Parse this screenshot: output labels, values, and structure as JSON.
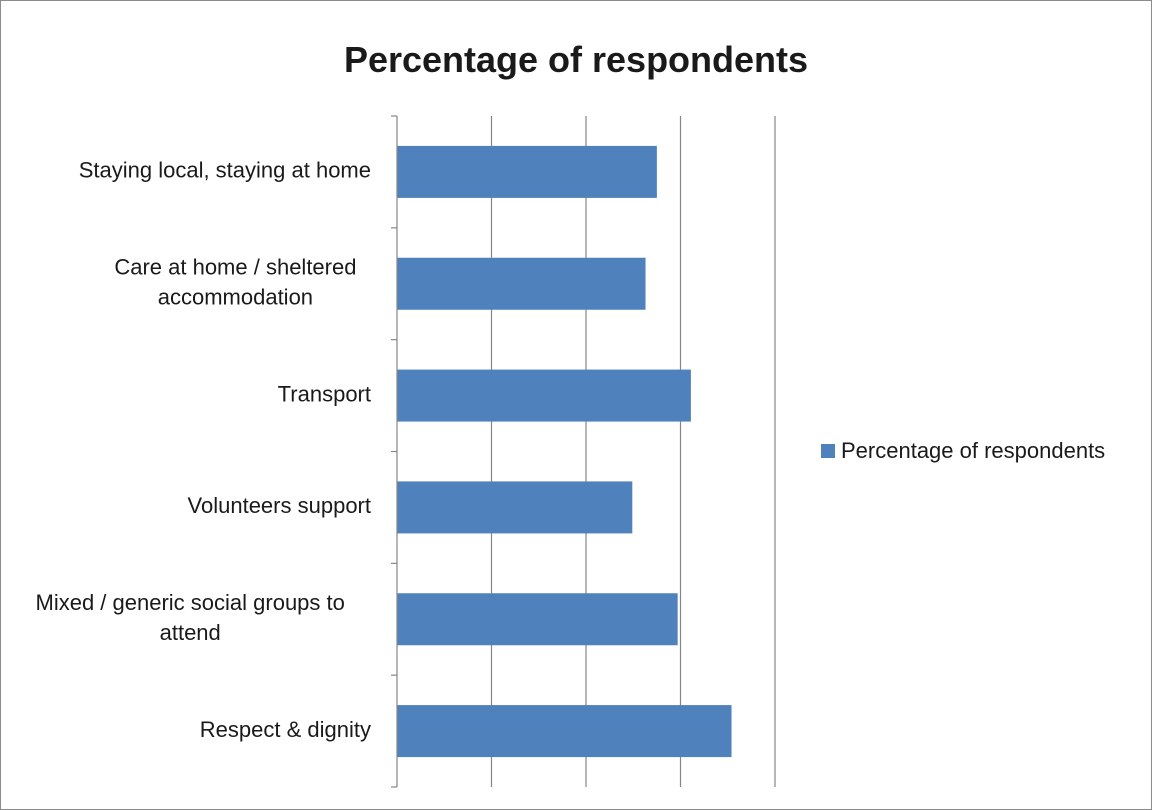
{
  "chart_data": {
    "type": "bar",
    "orientation": "horizontal",
    "title": "Percentage of respondents",
    "categories": [
      "Staying local, staying at home",
      "Care at home / sheltered accommodation",
      "Transport",
      "Volunteers support",
      "Mixed / generic social groups to attend",
      "Respect & dignity"
    ],
    "category_label_lines": [
      [
        "Staying local, staying at home"
      ],
      [
        "Care at home / sheltered",
        "accommodation"
      ],
      [
        "Transport"
      ],
      [
        "Volunteers support"
      ],
      [
        "Mixed / generic social groups to",
        "attend"
      ],
      [
        "Respect & dignity"
      ]
    ],
    "series": [
      {
        "name": "Percentage of respondents",
        "values": [
          27.5,
          26.3,
          31.1,
          24.9,
          29.7,
          35.4
        ],
        "color": "#4f81bd"
      }
    ],
    "xlim": [
      0,
      40
    ],
    "x_tick_labels_shown": false,
    "grid": "vertical",
    "legend": "right"
  }
}
